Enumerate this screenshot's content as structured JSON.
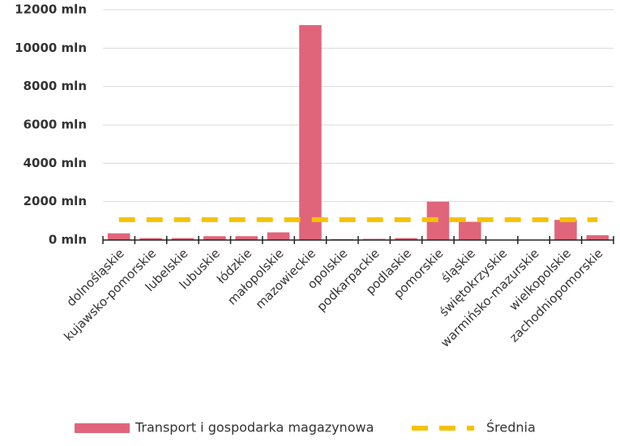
{
  "chart_data": {
    "type": "bar",
    "categories": [
      "dolnośląskie",
      "kujawsko-pomorskie",
      "lubelskie",
      "lubuskie",
      "łódzkie",
      "małopolskie",
      "mazowieckie",
      "opolskie",
      "podkarpackie",
      "podlaskie",
      "pomorskie",
      "śląskie",
      "świętokrzyskie",
      "warmińsko-mazurskie",
      "wielkopolskie",
      "zachodniopomorskie"
    ],
    "series": [
      {
        "name": "Transport i gospodarka magazynowa",
        "color": "#e0657a",
        "type": "bar",
        "values": [
          350,
          100,
          100,
          200,
          200,
          400,
          11200,
          50,
          60,
          100,
          2000,
          950,
          0,
          0,
          1050,
          250
        ]
      },
      {
        "name": "Średnia",
        "color": "#f5c200",
        "type": "line",
        "values": [
          1063,
          1063,
          1063,
          1063,
          1063,
          1063,
          1063,
          1063,
          1063,
          1063,
          1063,
          1063,
          1063,
          1063,
          1063,
          1063
        ]
      }
    ],
    "ylim": [
      0,
      12000
    ],
    "yticks": [
      {
        "value": 0,
        "label": "0 mln"
      },
      {
        "value": 2000,
        "label": "2000 mln"
      },
      {
        "value": 4000,
        "label": "4000 mln"
      },
      {
        "value": 6000,
        "label": "6000 mln"
      },
      {
        "value": 8000,
        "label": "8000 mln"
      },
      {
        "value": 10000,
        "label": "10000 mln"
      },
      {
        "value": 12000,
        "label": "12000 mln"
      }
    ],
    "grid": true,
    "legend": "bottom"
  }
}
